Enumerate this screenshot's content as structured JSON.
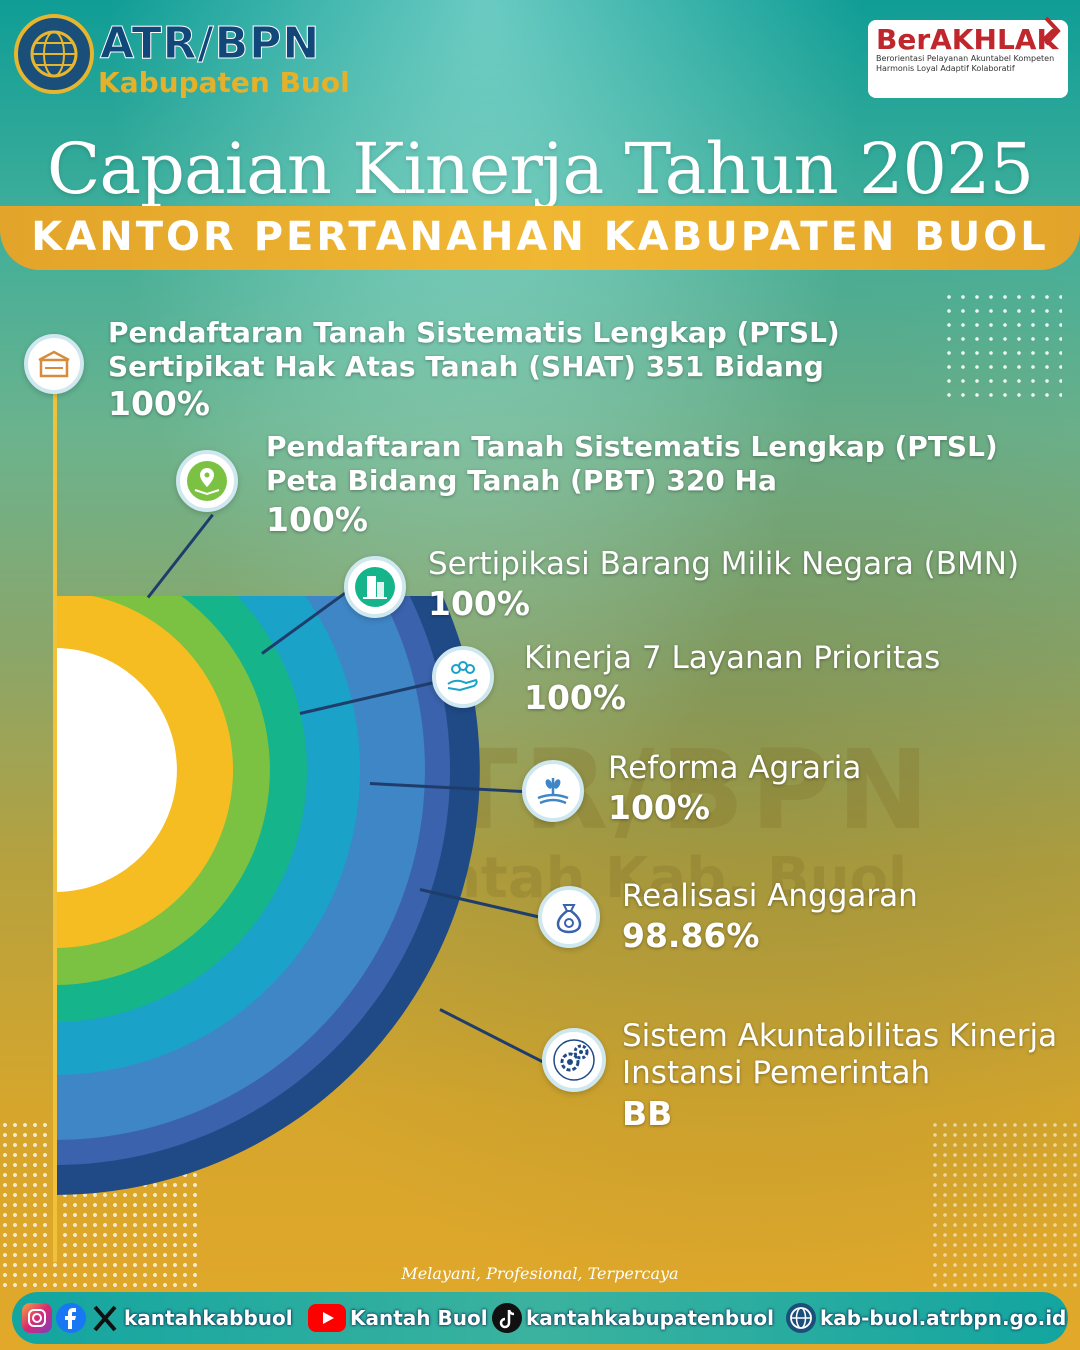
{
  "header": {
    "brand_name": "ATR/BPN",
    "brand_sub": "Kabupaten Buol",
    "berakhlak_title": "BerAKHLAK",
    "berakhlak_line1": "Berorientasi Pelayanan Akuntabel Kompeten",
    "berakhlak_line2": "Harmonis Loyal Adaptif Kolaboratif"
  },
  "title": "Capaian Kinerja Tahun 2025",
  "subtitle": "KANTOR PERTANAHAN KABUPATEN BUOL",
  "watermark": {
    "line1": "ATR/BPN",
    "line2": "Kantah Kab. Buol"
  },
  "items": [
    {
      "line1": "Pendaftaran Tanah Sistematis Lengkap (PTSL)",
      "line2": "Sertipikat Hak Atas Tanah (SHAT) 351 Bidang",
      "value": "100%",
      "icon": "document-box-icon"
    },
    {
      "line1": "Pendaftaran Tanah Sistematis Lengkap (PTSL)",
      "line2": "Peta Bidang Tanah (PBT) 320 Ha",
      "value": "100%",
      "icon": "map-pin-icon"
    },
    {
      "line1": "Sertipikasi Barang Milik Negara (BMN)",
      "value": "100%",
      "icon": "building-icon"
    },
    {
      "line1": "Kinerja 7 Layanan Prioritas",
      "value": "100%",
      "icon": "people-hand-icon"
    },
    {
      "line1": "Reforma Agraria",
      "value": "100%",
      "icon": "wheat-field-icon"
    },
    {
      "line1": "Realisasi Anggaran",
      "value": "98.86%",
      "icon": "money-bag-icon"
    },
    {
      "line1": "Sistem Akuntabilitas Kinerja",
      "line2": "Instansi Pemerintah",
      "value": "BB",
      "icon": "gears-icon"
    }
  ],
  "arc_colors": [
    "#f6bd22",
    "#7cc242",
    "#15b48a",
    "#1aa2c8",
    "#3f86c6",
    "#3a62ad",
    "#1f4a86"
  ],
  "tagline": "Melayani, Profesional, Terpercaya",
  "footer": {
    "instagram_facebook_x": "kantahkabbuol",
    "youtube": "Kantah Buol",
    "tiktok": "kantahkabupatenbuol",
    "website": "kab-buol.atrbpn.go.id"
  }
}
